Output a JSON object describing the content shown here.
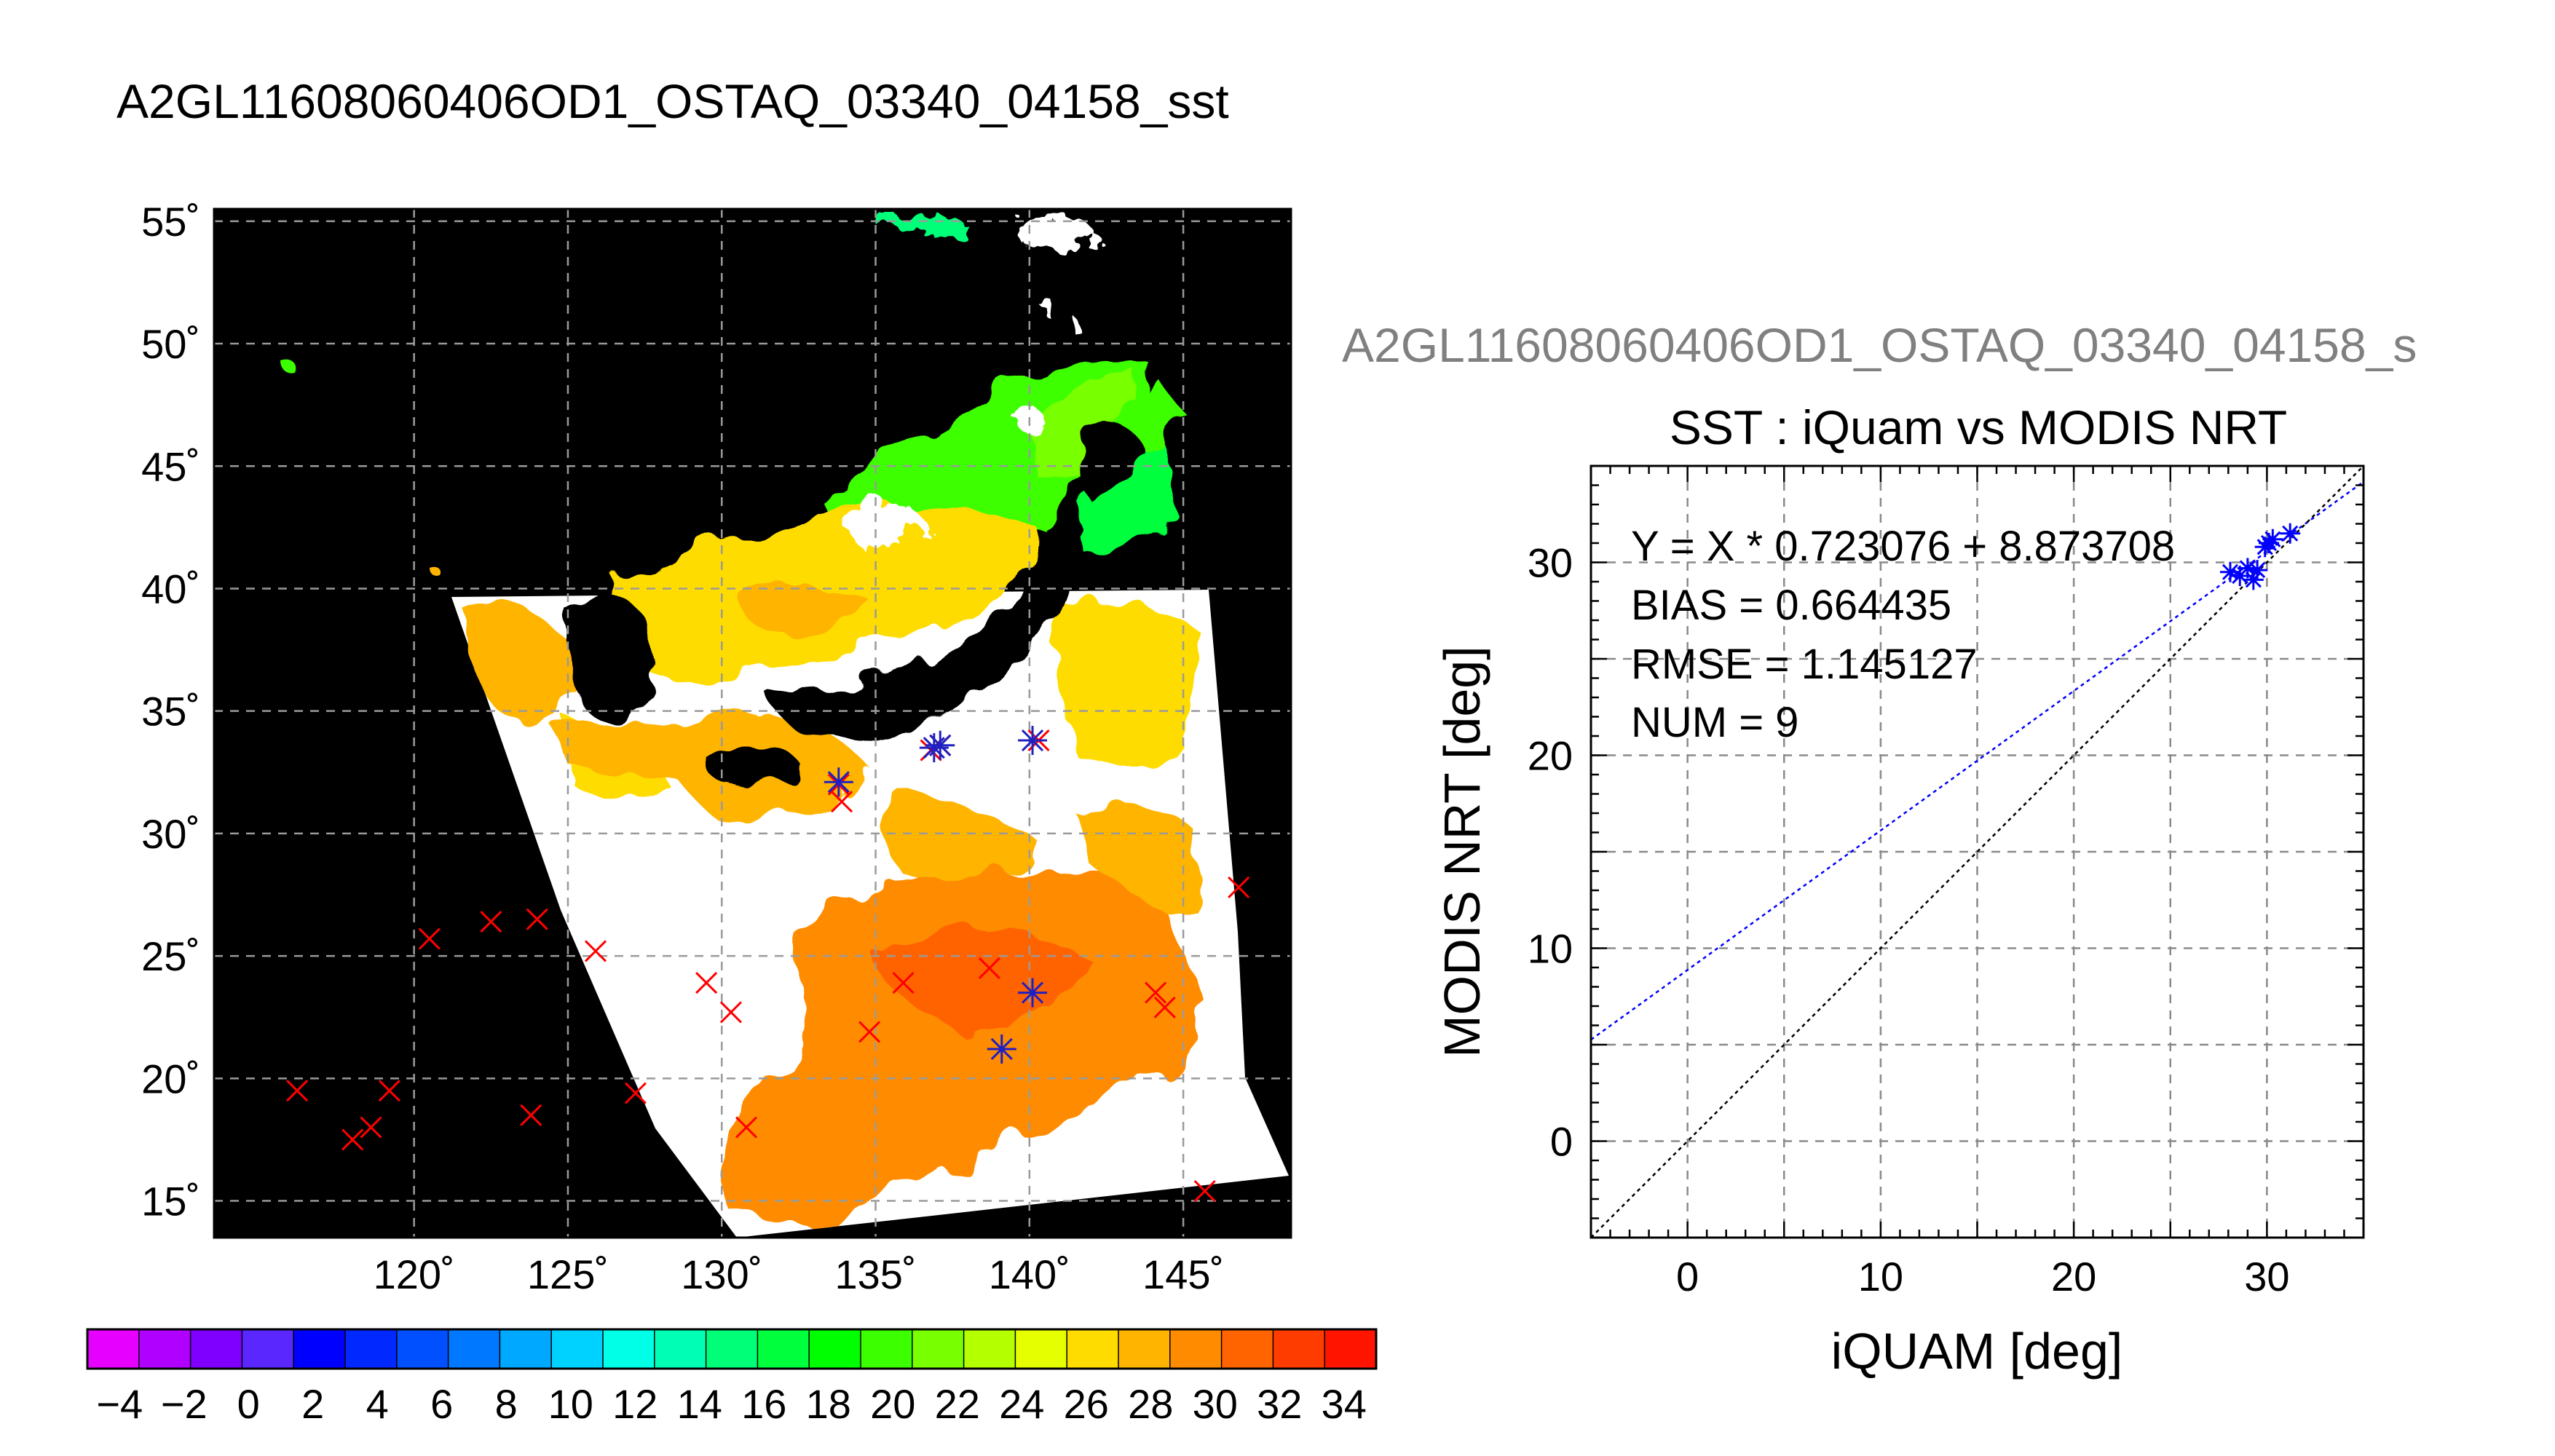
{
  "map": {
    "title": "A2GL11608060406OD1_OSTAQ_03340_04158_sst",
    "lat_labels": [
      "55˚",
      "50˚",
      "45˚",
      "40˚",
      "35˚",
      "30˚",
      "25˚",
      "20˚",
      "15˚"
    ],
    "lon_labels": [
      "120˚",
      "125˚",
      "130˚",
      "135˚",
      "140˚",
      "145˚"
    ],
    "colorbar_labels": [
      "−4",
      "−2",
      "0",
      "2",
      "4",
      "6",
      "8",
      "10",
      "12",
      "14",
      "16",
      "18",
      "20",
      "22",
      "24",
      "26",
      "28",
      "30",
      "32",
      "34"
    ],
    "colorbar_colors": [
      "#e600ff",
      "#b000ff",
      "#8000ff",
      "#5a28ff",
      "#0000ff",
      "#0028ff",
      "#0050ff",
      "#0078ff",
      "#00a8ff",
      "#00d2ff",
      "#00ffe6",
      "#00ffb4",
      "#00ff78",
      "#00ff3c",
      "#00ff00",
      "#3cff00",
      "#78ff00",
      "#b4ff00",
      "#e6ff00",
      "#ffdc00",
      "#ffb400",
      "#ff8c00",
      "#ff6400",
      "#ff3c00",
      "#ff1400"
    ],
    "points_red": [
      [
        116.2,
        19.5
      ],
      [
        118.0,
        17.5
      ],
      [
        118.6,
        18.0
      ],
      [
        119.2,
        19.5
      ],
      [
        120.5,
        25.7
      ],
      [
        122.5,
        26.4
      ],
      [
        124.0,
        26.5
      ],
      [
        123.8,
        18.5
      ],
      [
        125.9,
        25.2
      ],
      [
        127.2,
        19.4
      ],
      [
        129.5,
        23.9
      ],
      [
        130.3,
        22.7
      ],
      [
        130.8,
        18.0
      ],
      [
        133.9,
        31.3
      ],
      [
        133.8,
        32.0
      ],
      [
        134.8,
        21.9
      ],
      [
        135.9,
        23.9
      ],
      [
        136.8,
        33.4
      ],
      [
        137.1,
        33.6
      ],
      [
        138.7,
        24.5
      ],
      [
        140.3,
        33.8
      ],
      [
        144.1,
        23.5
      ],
      [
        144.4,
        22.9
      ],
      [
        145.7,
        15.4
      ],
      [
        146.8,
        27.8
      ]
    ],
    "points_blue": [
      [
        133.8,
        32.1
      ],
      [
        136.9,
        33.5
      ],
      [
        137.1,
        33.6
      ],
      [
        140.1,
        33.8
      ],
      [
        140.1,
        23.5
      ],
      [
        139.1,
        21.2
      ]
    ]
  },
  "scatter": {
    "title_top": "A2GL11608060406OD1_OSTAQ_03340_04158_s",
    "title": "SST : iQuam vs MODIS NRT",
    "xlabel": "iQUAM [deg]",
    "ylabel": "MODIS NRT [deg]",
    "xtick_labels": [
      "0",
      "10",
      "20",
      "30"
    ],
    "ytick_labels": [
      "0",
      "10",
      "20",
      "30"
    ],
    "stats": [
      "Y = X * 0.723076 + 8.873708",
      "BIAS = 0.664435",
      "RMSE = 1.145127",
      "NUM = 9"
    ],
    "fit_color": "#0000ff",
    "identity_color": "#000000"
  },
  "chart_data": [
    {
      "type": "scatter",
      "title": "A2GL11608060406OD1_OSTAQ_03340_04158_sst",
      "xlabel": "",
      "ylabel": "",
      "xlim": [
        113.5,
        148.5
      ],
      "ylim": [
        13.5,
        55.5
      ],
      "x_ticks": [
        120,
        125,
        130,
        135,
        140,
        145
      ],
      "y_ticks": [
        15,
        20,
        25,
        30,
        35,
        40,
        45,
        50,
        55
      ],
      "grid": true,
      "colorbar": {
        "range": [
          -5,
          35
        ],
        "ticks": [
          -4,
          -2,
          0,
          2,
          4,
          6,
          8,
          10,
          12,
          14,
          16,
          18,
          20,
          22,
          24,
          26,
          28,
          30,
          32,
          34
        ]
      },
      "series": [
        {
          "marker": "x",
          "color": "#ff0000",
          "points": [
            [
              116.2,
              19.5
            ],
            [
              118.0,
              17.5
            ],
            [
              118.6,
              18.0
            ],
            [
              119.2,
              19.5
            ],
            [
              120.5,
              25.7
            ],
            [
              122.5,
              26.4
            ],
            [
              124.0,
              26.5
            ],
            [
              123.8,
              18.5
            ],
            [
              125.9,
              25.2
            ],
            [
              127.2,
              19.4
            ],
            [
              129.5,
              23.9
            ],
            [
              130.3,
              22.7
            ],
            [
              130.8,
              18.0
            ],
            [
              133.9,
              31.3
            ],
            [
              133.8,
              32.0
            ],
            [
              134.8,
              21.9
            ],
            [
              135.9,
              23.9
            ],
            [
              136.8,
              33.4
            ],
            [
              137.1,
              33.6
            ],
            [
              138.7,
              24.5
            ],
            [
              140.3,
              33.8
            ],
            [
              144.1,
              23.5
            ],
            [
              144.4,
              22.9
            ],
            [
              145.7,
              15.4
            ],
            [
              146.8,
              27.8
            ]
          ]
        },
        {
          "marker": "asterisk",
          "color": "#0000ff",
          "points": [
            [
              133.8,
              32.1
            ],
            [
              136.9,
              33.5
            ],
            [
              137.1,
              33.6
            ],
            [
              140.1,
              33.8
            ],
            [
              140.1,
              23.5
            ],
            [
              139.1,
              21.2
            ]
          ]
        }
      ]
    },
    {
      "type": "scatter",
      "title": "SST : iQuam vs MODIS NRT",
      "xlabel": "iQUAM [deg]",
      "ylabel": "MODIS NRT [deg]",
      "xlim": [
        -5,
        35
      ],
      "ylim": [
        -5,
        35
      ],
      "grid": true,
      "series": [
        {
          "marker": "asterisk",
          "color": "#0000ff",
          "x": [
            28.1,
            28.6,
            29.0,
            29.3,
            29.5,
            29.9,
            30.1,
            30.3,
            31.2
          ],
          "y": [
            29.5,
            29.3,
            29.7,
            29.1,
            29.6,
            30.8,
            31.0,
            31.2,
            31.5
          ]
        }
      ],
      "lines": [
        {
          "kind": "fit",
          "slope": 0.723076,
          "intercept": 8.873708,
          "color": "#0000ff",
          "style": "dotted"
        },
        {
          "kind": "identity",
          "slope": 1,
          "intercept": 0,
          "color": "#000000",
          "style": "dotted"
        }
      ],
      "stats": {
        "bias": 0.664435,
        "rmse": 1.145127,
        "num": 9
      }
    }
  ]
}
